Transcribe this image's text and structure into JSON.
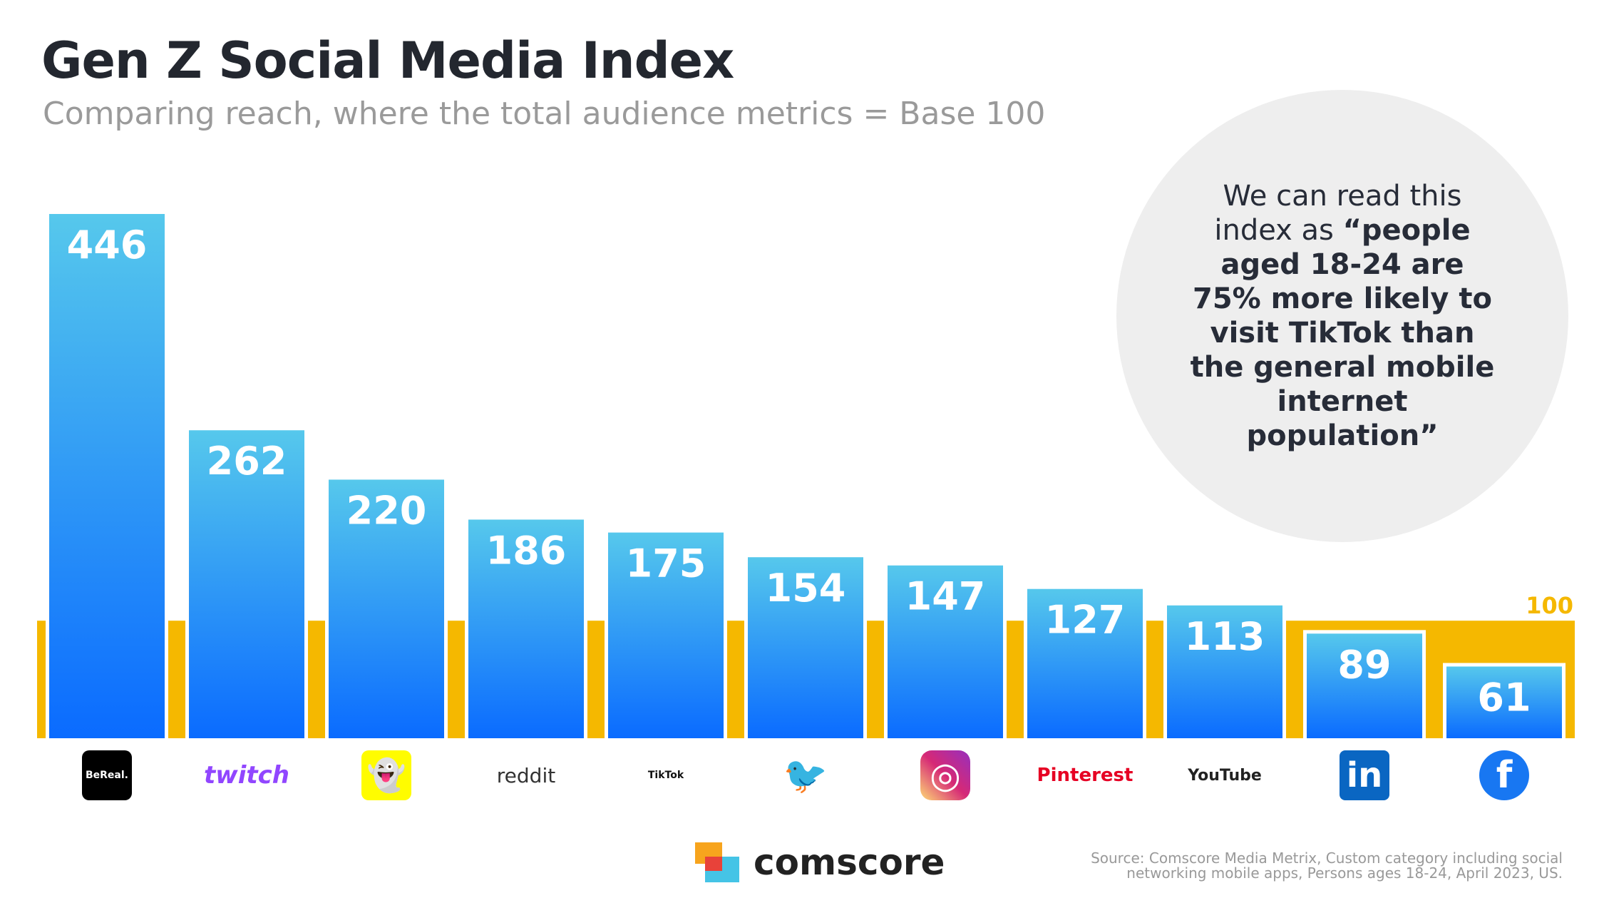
{
  "header": {
    "title": "Gen Z Social Media Index",
    "subtitle": "Comparing reach, where the total audience metrics = Base 100"
  },
  "callout": {
    "text_plain": "We can read this index as ",
    "text_bold": "“people aged 18-24 are 75% more likely to visit TikTok than the general mobile internet population”"
  },
  "chart_data": {
    "type": "bar",
    "title": "Gen Z Social Media Index",
    "subtitle": "Comparing reach, where the total audience metrics = Base 100",
    "categories": [
      "BeReal",
      "Twitch",
      "Snapchat",
      "Reddit",
      "TikTok",
      "Twitter",
      "Instagram",
      "Pinterest",
      "YouTube",
      "LinkedIn",
      "Facebook"
    ],
    "values": [
      446,
      262,
      220,
      186,
      175,
      154,
      147,
      127,
      113,
      89,
      61
    ],
    "baseline": {
      "value": 100,
      "label": "100",
      "color": "#f5b800"
    },
    "ylim": [
      0,
      446
    ],
    "grid": false,
    "bar_gradient": [
      "#56c8ec",
      "#0a6bff"
    ]
  },
  "icons": [
    {
      "name": "bereal",
      "text": "BeReal."
    },
    {
      "name": "twitch",
      "text": "twitch"
    },
    {
      "name": "snapchat",
      "text": "👻"
    },
    {
      "name": "reddit",
      "text": "reddit"
    },
    {
      "name": "tiktok",
      "text": "TikTok"
    },
    {
      "name": "twitter",
      "text": "🐦"
    },
    {
      "name": "instagram",
      "text": "◎"
    },
    {
      "name": "pinterest",
      "text": "Pinterest"
    },
    {
      "name": "youtube",
      "text": "YouTube"
    },
    {
      "name": "linkedin",
      "text": "in"
    },
    {
      "name": "facebook",
      "text": "f"
    }
  ],
  "footer": {
    "brand": "comscore",
    "source_line1": "Source: Comscore Media Metrix, Custom category including social",
    "source_line2": "networking mobile apps, Persons ages 18-24, April 2023, US."
  }
}
